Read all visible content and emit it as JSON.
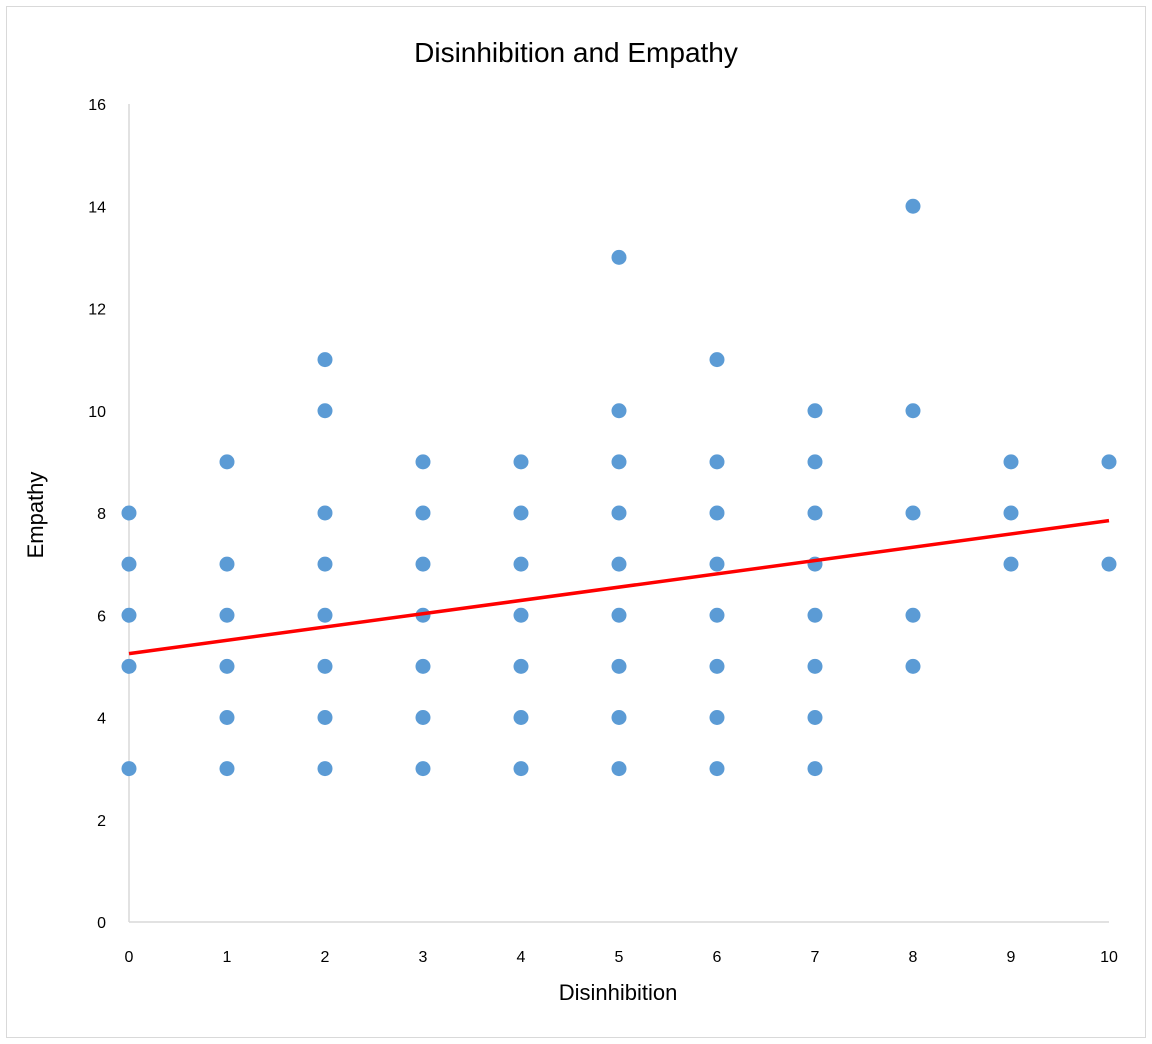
{
  "chart_data": {
    "type": "scatter",
    "title": "Disinhibition and Empathy",
    "xlabel": "Disinhibition",
    "ylabel": "Empathy",
    "xlim": [
      0,
      10
    ],
    "ylim": [
      0,
      16
    ],
    "x_ticks": [
      "0",
      "1",
      "2",
      "3",
      "4",
      "5",
      "6",
      "7",
      "8",
      "9",
      "10"
    ],
    "y_ticks": [
      "0",
      "2",
      "4",
      "6",
      "8",
      "10",
      "12",
      "14",
      "16"
    ],
    "grid": false,
    "legend": "none",
    "series": [
      {
        "color": "#5b9bd5",
        "points": [
          [
            0,
            3
          ],
          [
            0,
            5
          ],
          [
            0,
            6
          ],
          [
            0,
            7
          ],
          [
            0,
            8
          ],
          [
            1,
            3
          ],
          [
            1,
            4
          ],
          [
            1,
            5
          ],
          [
            1,
            6
          ],
          [
            1,
            7
          ],
          [
            1,
            9
          ],
          [
            2,
            3
          ],
          [
            2,
            4
          ],
          [
            2,
            5
          ],
          [
            2,
            6
          ],
          [
            2,
            7
          ],
          [
            2,
            8
          ],
          [
            2,
            10
          ],
          [
            2,
            11
          ],
          [
            3,
            3
          ],
          [
            3,
            4
          ],
          [
            3,
            5
          ],
          [
            3,
            6
          ],
          [
            3,
            7
          ],
          [
            3,
            8
          ],
          [
            3,
            9
          ],
          [
            4,
            3
          ],
          [
            4,
            4
          ],
          [
            4,
            5
          ],
          [
            4,
            6
          ],
          [
            4,
            7
          ],
          [
            4,
            8
          ],
          [
            4,
            9
          ],
          [
            5,
            3
          ],
          [
            5,
            4
          ],
          [
            5,
            5
          ],
          [
            5,
            6
          ],
          [
            5,
            7
          ],
          [
            5,
            8
          ],
          [
            5,
            9
          ],
          [
            5,
            10
          ],
          [
            5,
            13
          ],
          [
            6,
            3
          ],
          [
            6,
            4
          ],
          [
            6,
            5
          ],
          [
            6,
            6
          ],
          [
            6,
            7
          ],
          [
            6,
            8
          ],
          [
            6,
            9
          ],
          [
            6,
            11
          ],
          [
            7,
            3
          ],
          [
            7,
            4
          ],
          [
            7,
            5
          ],
          [
            7,
            6
          ],
          [
            7,
            7
          ],
          [
            7,
            8
          ],
          [
            7,
            9
          ],
          [
            7,
            10
          ],
          [
            8,
            5
          ],
          [
            8,
            6
          ],
          [
            8,
            8
          ],
          [
            8,
            10
          ],
          [
            8,
            14
          ],
          [
            9,
            7
          ],
          [
            9,
            8
          ],
          [
            9,
            9
          ],
          [
            10,
            7
          ],
          [
            10,
            9
          ]
        ]
      }
    ],
    "trendline": {
      "type": "linear",
      "color": "#ff0000",
      "start": [
        0,
        5.25
      ],
      "end": [
        10,
        7.85
      ]
    },
    "axis_color": "#d9d9d9",
    "border_color": "#d9d9d9"
  }
}
